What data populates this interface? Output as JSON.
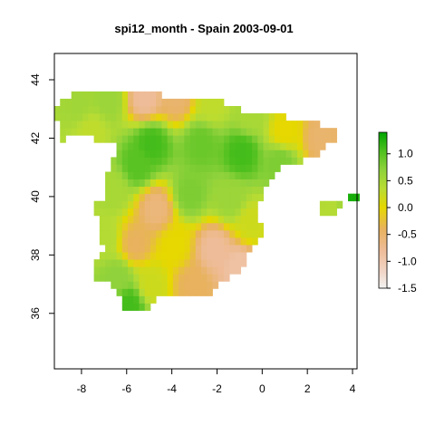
{
  "chart_data": {
    "type": "heatmap",
    "title": "spi12_month - Spain 2003-09-01",
    "xlabel": "",
    "ylabel": "",
    "xlim": [
      -9.2,
      4.2
    ],
    "ylim": [
      34.1,
      44.9
    ],
    "x_ticks": [
      -8,
      -6,
      -4,
      -2,
      0,
      2,
      4
    ],
    "x_tick_labels": [
      "-8",
      "-6",
      "-4",
      "-2",
      "0",
      "2",
      "4"
    ],
    "y_ticks": [
      36,
      38,
      40,
      42,
      44
    ],
    "y_tick_labels": [
      "36",
      "38",
      "40",
      "42",
      "44"
    ],
    "grid": false,
    "legend": {
      "position": "right",
      "ticks": [
        -1.5,
        -1.0,
        -0.5,
        0.0,
        0.5,
        1.0
      ],
      "tick_labels": [
        "-1.5",
        "-1.0",
        "-0.5",
        "0.0",
        "0.5",
        "1.0"
      ],
      "range": [
        -1.5,
        1.4
      ],
      "stops": [
        {
          "v": -1.5,
          "color": "#f2f2f2"
        },
        {
          "v": -1.2,
          "color": "#f1d6c7"
        },
        {
          "v": -0.8,
          "color": "#eebc99"
        },
        {
          "v": -0.4,
          "color": "#e8b25e"
        },
        {
          "v": 0.0,
          "color": "#e6d800"
        },
        {
          "v": 0.35,
          "color": "#b9dc33"
        },
        {
          "v": 0.7,
          "color": "#8fd23b"
        },
        {
          "v": 1.05,
          "color": "#4fc01f"
        },
        {
          "v": 1.4,
          "color": "#00a600"
        }
      ]
    },
    "grid_cell_deg": 0.25,
    "anchors": [
      {
        "lon": -8.1,
        "lat": 43.1,
        "v": 0.55
      },
      {
        "lon": -6.8,
        "lat": 43.3,
        "v": 0.6
      },
      {
        "lon": -5.2,
        "lat": 43.4,
        "v": -0.8
      },
      {
        "lon": -3.8,
        "lat": 43.4,
        "v": -0.5
      },
      {
        "lon": -2.2,
        "lat": 43.2,
        "v": 0.3
      },
      {
        "lon": -0.5,
        "lat": 42.8,
        "v": 0.5
      },
      {
        "lon": 1.0,
        "lat": 42.2,
        "v": 0.0
      },
      {
        "lon": 2.6,
        "lat": 42.0,
        "v": -0.5
      },
      {
        "lon": -7.6,
        "lat": 42.3,
        "v": 0.3
      },
      {
        "lon": -4.9,
        "lat": 41.8,
        "v": 1.1
      },
      {
        "lon": -5.5,
        "lat": 41.1,
        "v": 1.0
      },
      {
        "lon": -2.7,
        "lat": 41.8,
        "v": 0.9
      },
      {
        "lon": -0.9,
        "lat": 41.5,
        "v": 1.1
      },
      {
        "lon": 0.8,
        "lat": 41.2,
        "v": 0.8
      },
      {
        "lon": -6.6,
        "lat": 40.2,
        "v": 0.5
      },
      {
        "lon": -4.7,
        "lat": 39.6,
        "v": -0.6
      },
      {
        "lon": -3.2,
        "lat": 40.1,
        "v": 0.8
      },
      {
        "lon": -1.4,
        "lat": 39.9,
        "v": 0.6
      },
      {
        "lon": -0.5,
        "lat": 39.1,
        "v": 0.2
      },
      {
        "lon": -7.0,
        "lat": 38.6,
        "v": 0.4
      },
      {
        "lon": -5.6,
        "lat": 38.4,
        "v": -0.4
      },
      {
        "lon": -3.9,
        "lat": 38.3,
        "v": 0.0
      },
      {
        "lon": -2.1,
        "lat": 38.2,
        "v": -0.8
      },
      {
        "lon": -1.0,
        "lat": 37.6,
        "v": -0.9
      },
      {
        "lon": -6.4,
        "lat": 37.2,
        "v": 0.7
      },
      {
        "lon": -4.9,
        "lat": 37.0,
        "v": 0.2
      },
      {
        "lon": -3.1,
        "lat": 37.0,
        "v": -0.4
      },
      {
        "lon": -5.9,
        "lat": 36.3,
        "v": 1.1
      },
      {
        "lon": 3.0,
        "lat": 39.6,
        "v": 0.4
      },
      {
        "lon": 4.1,
        "lat": 39.9,
        "v": 1.3
      }
    ]
  }
}
